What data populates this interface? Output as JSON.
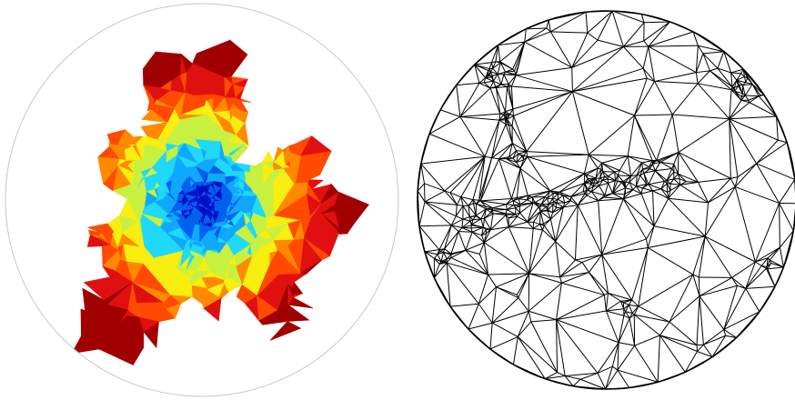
{
  "figure": {
    "panels": [
      {
        "id": "colored-domain",
        "description_visible": ""
      },
      {
        "id": "triangulation-mesh",
        "description_visible": ""
      }
    ]
  },
  "colors": {
    "deep_red": "#a00000",
    "red": "#e01010",
    "orange_red": "#ff4a00",
    "orange": "#ff8a00",
    "yellow": "#f8ee10",
    "yellow_green": "#c8f040",
    "cyan": "#20d8f8",
    "light_blue": "#10a8ff",
    "blue": "#0060f0",
    "dark_blue": "#0010c8",
    "circle_stroke_light": "#c8c8c8",
    "mesh_stroke": "#000000"
  }
}
